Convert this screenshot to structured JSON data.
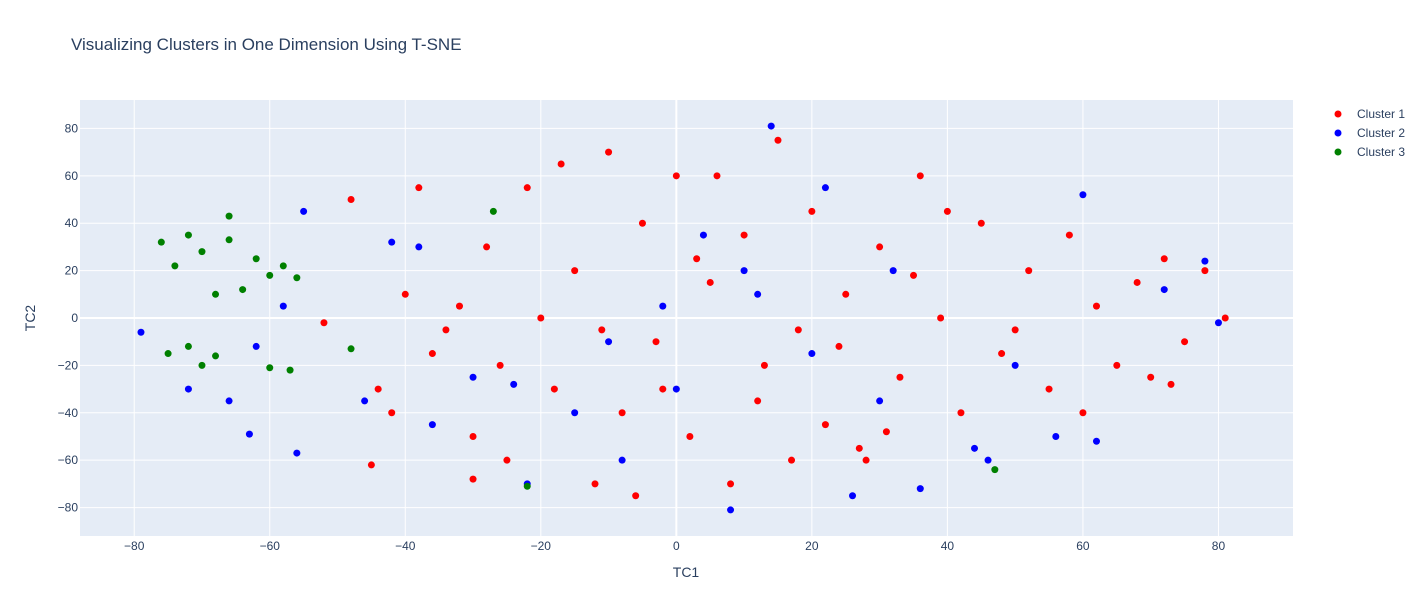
{
  "chart_data": {
    "type": "scatter",
    "title": "Visualizing Clusters in One Dimension Using T-SNE",
    "xlabel": "TC1",
    "ylabel": "TC2",
    "xlim": [
      -88,
      91
    ],
    "ylim": [
      -92,
      92
    ],
    "xticks": [
      -80,
      -60,
      -40,
      -20,
      0,
      20,
      40,
      60,
      80
    ],
    "yticks": [
      -80,
      -60,
      -40,
      -20,
      0,
      20,
      40,
      60,
      80
    ],
    "tick_labels_x": [
      "−80",
      "−60",
      "−40",
      "−20",
      "0",
      "20",
      "40",
      "60",
      "80"
    ],
    "tick_labels_y": [
      "−80",
      "−60",
      "−40",
      "−20",
      "0",
      "20",
      "40",
      "60",
      "80"
    ],
    "grid": true,
    "legend_position": "top-right",
    "plot_background": "#e5ecf6",
    "series": [
      {
        "name": "Cluster 1",
        "color": "#ff0000",
        "points": [
          [
            -52,
            -2
          ],
          [
            -48,
            50
          ],
          [
            -44,
            -30
          ],
          [
            -40,
            10
          ],
          [
            -36,
            -15
          ],
          [
            -32,
            5
          ],
          [
            -30,
            -50
          ],
          [
            -28,
            30
          ],
          [
            -25,
            -60
          ],
          [
            -22,
            55
          ],
          [
            -20,
            0
          ],
          [
            -18,
            -30
          ],
          [
            -15,
            20
          ],
          [
            -12,
            -70
          ],
          [
            -10,
            70
          ],
          [
            -8,
            -40
          ],
          [
            -5,
            40
          ],
          [
            -3,
            -10
          ],
          [
            0,
            60
          ],
          [
            2,
            -50
          ],
          [
            5,
            15
          ],
          [
            8,
            -70
          ],
          [
            10,
            35
          ],
          [
            13,
            -20
          ],
          [
            15,
            75
          ],
          [
            18,
            -5
          ],
          [
            20,
            45
          ],
          [
            22,
            -45
          ],
          [
            25,
            10
          ],
          [
            28,
            -60
          ],
          [
            30,
            30
          ],
          [
            33,
            -25
          ],
          [
            36,
            60
          ],
          [
            39,
            0
          ],
          [
            42,
            -40
          ],
          [
            45,
            40
          ],
          [
            48,
            -15
          ],
          [
            52,
            20
          ],
          [
            55,
            -30
          ],
          [
            58,
            35
          ],
          [
            62,
            5
          ],
          [
            65,
            -20
          ],
          [
            68,
            15
          ],
          [
            72,
            25
          ],
          [
            75,
            -10
          ],
          [
            78,
            20
          ],
          [
            81,
            0
          ],
          [
            -42,
            -40
          ],
          [
            -38,
            55
          ],
          [
            -34,
            -5
          ],
          [
            -26,
            -20
          ],
          [
            -17,
            65
          ],
          [
            -6,
            -75
          ],
          [
            6,
            60
          ],
          [
            17,
            -60
          ],
          [
            27,
            -55
          ],
          [
            31,
            -48
          ],
          [
            40,
            45
          ],
          [
            50,
            -5
          ],
          [
            60,
            -40
          ],
          [
            70,
            -25
          ],
          [
            73,
            -28
          ],
          [
            -30,
            -68
          ],
          [
            -45,
            -62
          ],
          [
            -11,
            -5
          ],
          [
            3,
            25
          ],
          [
            12,
            -35
          ],
          [
            24,
            -12
          ],
          [
            35,
            18
          ],
          [
            -2,
            -30
          ]
        ]
      },
      {
        "name": "Cluster 2",
        "color": "#0000ff",
        "points": [
          [
            -79,
            -6
          ],
          [
            -72,
            -30
          ],
          [
            -66,
            -35
          ],
          [
            -62,
            -12
          ],
          [
            -63,
            -49
          ],
          [
            -56,
            -57
          ],
          [
            -58,
            5
          ],
          [
            -55,
            45
          ],
          [
            -42,
            32
          ],
          [
            -38,
            30
          ],
          [
            -36,
            -45
          ],
          [
            -30,
            -25
          ],
          [
            -22,
            -70
          ],
          [
            -15,
            -40
          ],
          [
            -8,
            -60
          ],
          [
            -2,
            5
          ],
          [
            4,
            35
          ],
          [
            8,
            -81
          ],
          [
            12,
            10
          ],
          [
            14,
            81
          ],
          [
            20,
            -15
          ],
          [
            26,
            -75
          ],
          [
            32,
            20
          ],
          [
            36,
            -72
          ],
          [
            44,
            -55
          ],
          [
            46,
            -60
          ],
          [
            50,
            -20
          ],
          [
            56,
            -50
          ],
          [
            60,
            52
          ],
          [
            62,
            -52
          ],
          [
            72,
            12
          ],
          [
            78,
            24
          ],
          [
            80,
            -2
          ],
          [
            -24,
            -28
          ],
          [
            0,
            -30
          ],
          [
            10,
            20
          ],
          [
            -10,
            -10
          ],
          [
            30,
            -35
          ],
          [
            -46,
            -35
          ],
          [
            22,
            55
          ]
        ]
      },
      {
        "name": "Cluster 3",
        "color": "#008000",
        "points": [
          [
            -76,
            32
          ],
          [
            -74,
            22
          ],
          [
            -72,
            35
          ],
          [
            -70,
            28
          ],
          [
            -68,
            10
          ],
          [
            -66,
            33
          ],
          [
            -64,
            12
          ],
          [
            -62,
            25
          ],
          [
            -60,
            18
          ],
          [
            -58,
            22
          ],
          [
            -56,
            17
          ],
          [
            -75,
            -15
          ],
          [
            -72,
            -12
          ],
          [
            -70,
            -20
          ],
          [
            -68,
            -16
          ],
          [
            -60,
            -21
          ],
          [
            -57,
            -22
          ],
          [
            -66,
            43
          ],
          [
            -27,
            45
          ],
          [
            -22,
            -71
          ],
          [
            47,
            -64
          ],
          [
            -48,
            -13
          ]
        ]
      }
    ]
  }
}
